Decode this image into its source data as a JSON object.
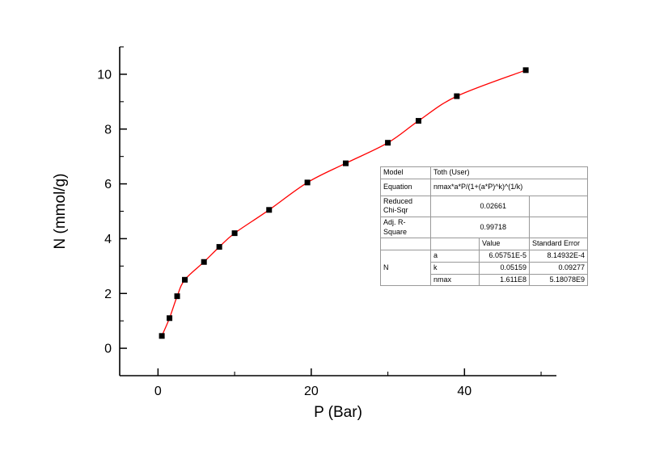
{
  "chart_data": {
    "type": "scatter",
    "title": "",
    "xlabel": "P (Bar)",
    "ylabel": "N (mmol/g)",
    "xlim": [
      -5,
      52
    ],
    "ylim": [
      -1,
      11
    ],
    "x_major_ticks": [
      0,
      20,
      40
    ],
    "x_minor_ticks": [
      10,
      30,
      50
    ],
    "y_major_ticks": [
      0,
      2,
      4,
      6,
      8,
      10
    ],
    "y_minor_ticks": [
      1,
      3,
      5,
      7,
      9,
      11
    ],
    "grid": false,
    "legend": "none",
    "axis_color": "#000000",
    "series": [
      {
        "name": "adsorption-data-points",
        "type": "scatter",
        "marker": "square",
        "color": "#000000",
        "x": [
          0.5,
          1.5,
          2.5,
          3.5,
          6,
          8,
          10,
          14.5,
          19.5,
          24.5,
          30,
          34,
          39,
          48
        ],
        "y": [
          0.45,
          1.1,
          1.9,
          2.5,
          3.15,
          3.7,
          4.2,
          5.05,
          6.05,
          6.75,
          7.5,
          8.3,
          9.2,
          10.15
        ]
      },
      {
        "name": "toth-fit-curve",
        "type": "line",
        "color": "#ff0000"
      }
    ]
  },
  "fit_table": {
    "model_label": "Model",
    "model_value": "Toth (User)",
    "equation_label": "Equation",
    "equation_value": "nmax*a*P/(1+(a*P)^k)^(1/k)",
    "chisqr_label": "Reduced Chi-Sqr",
    "chisqr_value": "0.02661",
    "rsquare_label": "Adj. R-Square",
    "rsquare_value": "0.99718",
    "value_header": "Value",
    "stderr_header": "Standard Error",
    "group_label": "N",
    "params": [
      {
        "name": "a",
        "value": "6.05751E-5",
        "stderr": "8.14932E-4"
      },
      {
        "name": "k",
        "value": "0.05159",
        "stderr": "0.09277"
      },
      {
        "name": "nmax",
        "value": "1.611E8",
        "stderr": "5.18078E9"
      }
    ]
  }
}
